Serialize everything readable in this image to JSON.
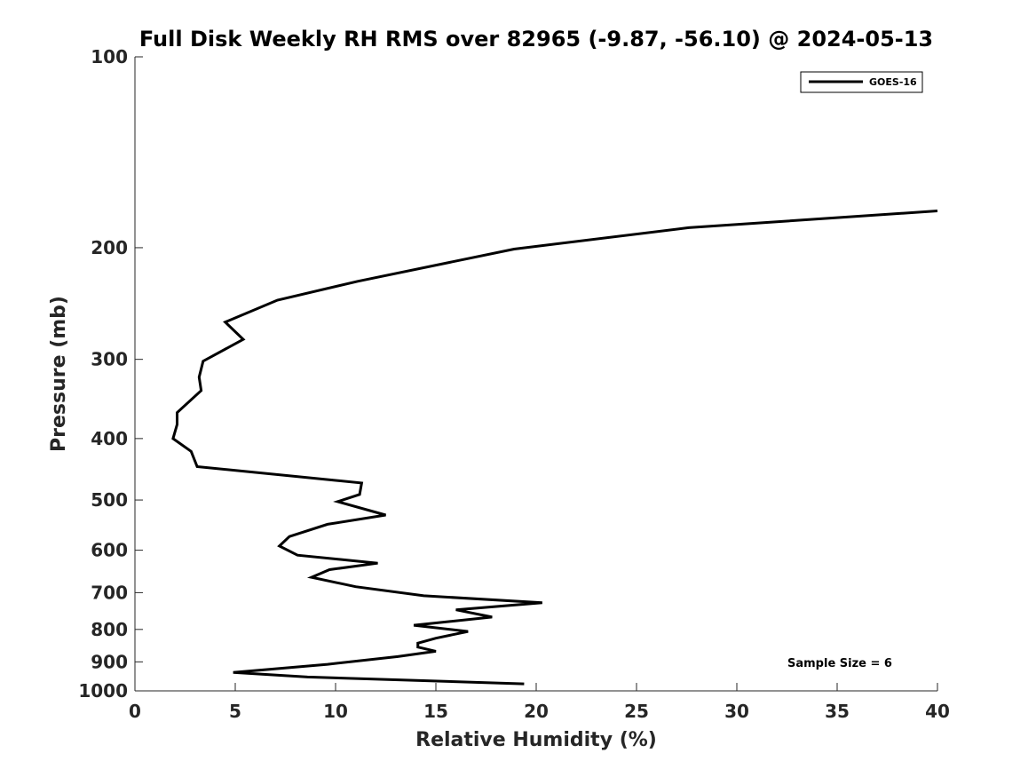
{
  "chart_data": {
    "type": "line",
    "title": "Full Disk Weekly RH RMS over 82965 (-9.87, -56.10) @ 2024-05-13",
    "xlabel": "Relative Humidity (%)",
    "ylabel": "Pressure (mb)",
    "xlim": [
      0,
      40
    ],
    "ylim": [
      100,
      1000
    ],
    "y_scale": "log",
    "y_reversed": true,
    "grid": false,
    "x_ticks": [
      "0",
      "5",
      "10",
      "15",
      "20",
      "25",
      "30",
      "35",
      "40"
    ],
    "y_ticks": [
      "100",
      "200",
      "300",
      "400",
      "500",
      "600",
      "700",
      "800",
      "900",
      "1000"
    ],
    "legend": {
      "position": "top-right",
      "entries": [
        "GOES-16"
      ]
    },
    "annotation": "Sample Size = 6",
    "series": [
      {
        "name": "GOES-16",
        "color": "#000000",
        "points": [
          [
            40.0,
            175
          ],
          [
            27.6,
            186
          ],
          [
            18.9,
            201
          ],
          [
            11.1,
            226
          ],
          [
            7.1,
            242
          ],
          [
            4.5,
            262
          ],
          [
            5.4,
            279
          ],
          [
            3.4,
            302
          ],
          [
            3.2,
            320
          ],
          [
            3.3,
            336
          ],
          [
            2.1,
            364
          ],
          [
            2.1,
            380
          ],
          [
            1.9,
            400
          ],
          [
            2.8,
            419
          ],
          [
            3.1,
            443
          ],
          [
            11.3,
            470
          ],
          [
            11.2,
            490
          ],
          [
            10.1,
            503
          ],
          [
            12.5,
            528
          ],
          [
            9.6,
            546
          ],
          [
            7.7,
            571
          ],
          [
            7.2,
            591
          ],
          [
            8.1,
            611
          ],
          [
            12.1,
            629
          ],
          [
            9.7,
            644
          ],
          [
            8.8,
            662
          ],
          [
            11.0,
            685
          ],
          [
            14.4,
            708
          ],
          [
            20.3,
            726
          ],
          [
            16.0,
            745
          ],
          [
            17.8,
            765
          ],
          [
            13.9,
            788
          ],
          [
            16.6,
            806
          ],
          [
            15.0,
            826
          ],
          [
            14.1,
            841
          ],
          [
            14.1,
            853
          ],
          [
            15.0,
            866
          ],
          [
            13.1,
            883
          ],
          [
            9.6,
            908
          ],
          [
            4.9,
            935
          ],
          [
            8.6,
            951
          ],
          [
            19.4,
            975
          ]
        ]
      }
    ]
  }
}
